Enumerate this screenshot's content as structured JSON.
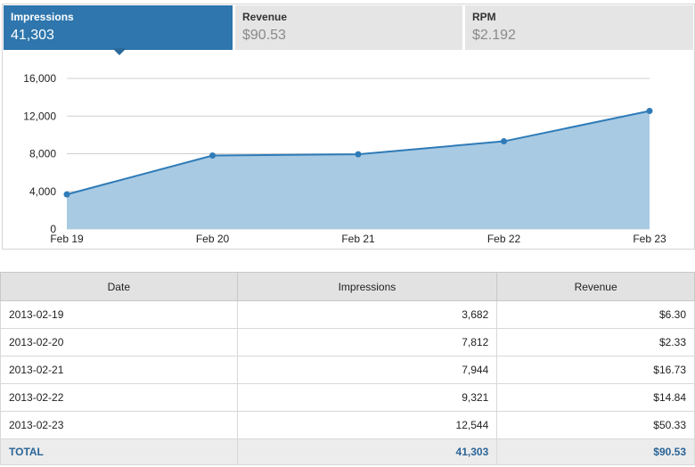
{
  "tabs": [
    {
      "label": "Impressions",
      "value": "41,303",
      "active": true
    },
    {
      "label": "Revenue",
      "value": "$90.53",
      "active": false
    },
    {
      "label": "RPM",
      "value": "$2.192",
      "active": false
    }
  ],
  "chart_data": {
    "type": "area",
    "title": "",
    "xlabel": "",
    "ylabel": "",
    "categories": [
      "Feb 19",
      "Feb 20",
      "Feb 21",
      "Feb 22",
      "Feb 23"
    ],
    "series": [
      {
        "values": [
          3682,
          7812,
          7944,
          9321,
          12544
        ]
      }
    ],
    "yticks": [
      "0",
      "4,000",
      "8,000",
      "12,000",
      "16,000"
    ],
    "ytick_values": [
      0,
      4000,
      8000,
      12000,
      16000
    ],
    "ylim": [
      0,
      16000
    ],
    "grid": true,
    "colors": {
      "line": "#2e7bb8",
      "fill": "#a8cae3",
      "grid": "#d0d0d0"
    }
  },
  "table": {
    "headers": [
      "Date",
      "Impressions",
      "Revenue"
    ],
    "rows": [
      [
        "2013-02-19",
        "3,682",
        "$6.30"
      ],
      [
        "2013-02-20",
        "7,812",
        "$2.33"
      ],
      [
        "2013-02-21",
        "7,944",
        "$16.73"
      ],
      [
        "2013-02-22",
        "9,321",
        "$14.84"
      ],
      [
        "2013-02-23",
        "12,544",
        "$50.33"
      ]
    ],
    "total": [
      "TOTAL",
      "41,303",
      "$90.53"
    ]
  }
}
